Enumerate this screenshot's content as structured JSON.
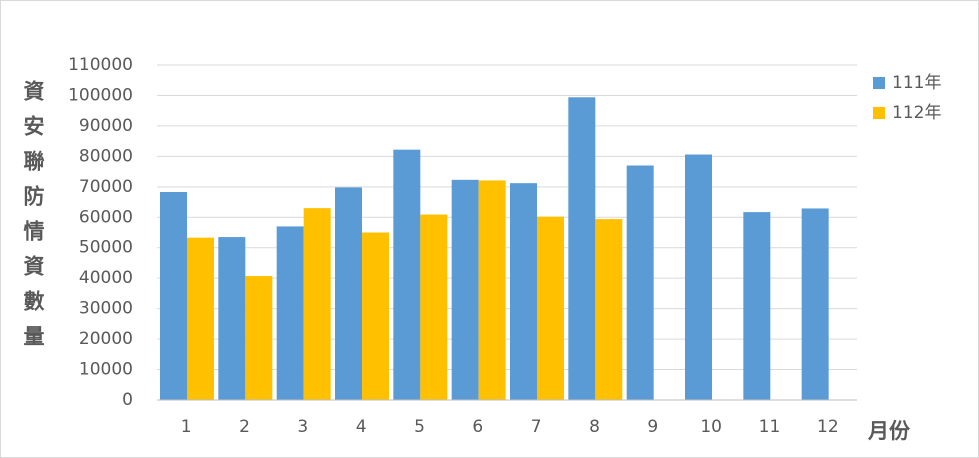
{
  "chart_data": {
    "type": "bar",
    "x_label": "月份",
    "y_label": "資安聯防情資數量",
    "categories": [
      "1",
      "2",
      "3",
      "4",
      "5",
      "6",
      "7",
      "8",
      "9",
      "10",
      "11",
      "12"
    ],
    "series": [
      {
        "name": "111年",
        "color": "#5b9bd5",
        "values": [
          68300,
          53500,
          57000,
          69800,
          82200,
          72300,
          71200,
          99400,
          77000,
          80600,
          61700,
          62900
        ]
      },
      {
        "name": "112年",
        "color": "#ffc000",
        "values": [
          53300,
          40700,
          63000,
          55000,
          60900,
          72100,
          60200,
          59400,
          null,
          null,
          null,
          null
        ]
      }
    ],
    "ylim": [
      0,
      110000
    ],
    "yticks": [
      0,
      10000,
      20000,
      30000,
      40000,
      50000,
      60000,
      70000,
      80000,
      90000,
      100000,
      110000
    ],
    "grid": true,
    "legend": "right"
  }
}
